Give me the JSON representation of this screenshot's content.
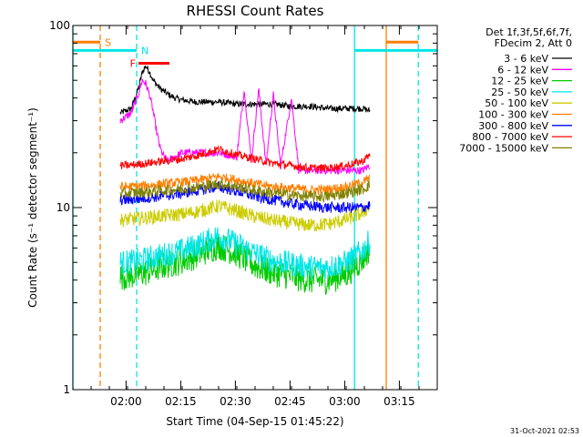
{
  "chart_data": {
    "type": "line",
    "title": "RHESSI Count Rates",
    "xlabel": "Start Time (04-Sep-15 01:45:22)",
    "ylabel": "Count Rate (s⁻¹ detector segment⁻¹)",
    "x_unit": "minutes after 01:45:22",
    "xlim": [
      0,
      100
    ],
    "ylim": [
      1,
      100
    ],
    "yscale": "log",
    "grid": false,
    "legend_placement": "right",
    "x_ticks": [
      {
        "label": "02:00",
        "x": 14.6
      },
      {
        "label": "02:15",
        "x": 29.6
      },
      {
        "label": "02:30",
        "x": 44.6
      },
      {
        "label": "02:45",
        "x": 59.6
      },
      {
        "label": "03:00",
        "x": 74.6
      },
      {
        "label": "03:15",
        "x": 89.6
      }
    ],
    "y_ticks": [
      {
        "label": "1",
        "y": 1
      },
      {
        "label": "10",
        "y": 10
      },
      {
        "label": "100",
        "y": 100
      }
    ],
    "legend_header": [
      "Det 1f,3f,5f,6f,7f,",
      "FDecim 2, Att 0"
    ],
    "series": [
      {
        "name": "3 - 6 keV",
        "color": "#000000",
        "x": [
          13,
          16,
          18,
          19,
          20,
          21,
          22,
          24,
          26,
          28,
          30,
          34,
          40,
          45,
          50,
          55,
          60,
          65,
          70,
          75,
          79.5,
          81.5
        ],
        "y": [
          33,
          35,
          45,
          55,
          60,
          56,
          50,
          45,
          42,
          40,
          39,
          38,
          38,
          37,
          37,
          37,
          36,
          36,
          35,
          35,
          35,
          34
        ]
      },
      {
        "name": "6 - 12 keV",
        "color": "#ff00ff",
        "x": [
          13,
          16,
          18,
          19,
          20,
          21,
          22,
          23,
          24,
          25,
          26,
          28,
          30,
          35,
          40,
          45,
          47,
          49,
          51,
          53,
          55,
          57,
          60,
          62,
          66,
          70,
          75,
          79.5,
          81.5
        ],
        "y": [
          30,
          33,
          42,
          50,
          48,
          42,
          34,
          26,
          21,
          19,
          18,
          19,
          20,
          20,
          20,
          19,
          45,
          18,
          45,
          17,
          42,
          17,
          40,
          16,
          16,
          16,
          16,
          16,
          17
        ]
      },
      {
        "name": "12 - 25 keV",
        "color": "#00cc00",
        "x": [
          13,
          15,
          20,
          25,
          30,
          35,
          40,
          45,
          50,
          55,
          60,
          65,
          70,
          75,
          79.5,
          81.5
        ],
        "y": [
          4.2,
          4.2,
          4.4,
          4.8,
          5.1,
          5.6,
          6.2,
          5.6,
          4.8,
          4.4,
          4.2,
          4.0,
          4.0,
          4.3,
          5.2,
          6.0
        ]
      },
      {
        "name": "25 - 50 keV",
        "color": "#00e5e5",
        "x": [
          13,
          15,
          20,
          25,
          30,
          35,
          40,
          45,
          50,
          55,
          60,
          65,
          70,
          75,
          79.5,
          81.5
        ],
        "y": [
          5.0,
          5.0,
          5.2,
          5.5,
          5.8,
          6.3,
          7.0,
          6.3,
          5.6,
          5.1,
          4.9,
          4.7,
          4.7,
          5.0,
          5.8,
          6.6
        ]
      },
      {
        "name": "50 - 100 keV",
        "color": "#cccc00",
        "x": [
          13,
          15,
          20,
          25,
          30,
          35,
          40,
          45,
          50,
          55,
          60,
          65,
          70,
          75,
          79.5,
          81.5
        ],
        "y": [
          8.5,
          8.6,
          8.8,
          9.0,
          9.2,
          9.6,
          10.2,
          9.6,
          8.9,
          8.5,
          8.2,
          8.0,
          8.1,
          8.6,
          9.3,
          10.2
        ]
      },
      {
        "name": "100 - 300 keV",
        "color": "#ff7f00",
        "x": [
          13,
          15,
          20,
          25,
          30,
          35,
          40,
          45,
          50,
          55,
          60,
          65,
          70,
          75,
          79.5,
          81.5
        ],
        "y": [
          13,
          13,
          13.2,
          13.5,
          13.8,
          14.2,
          14.8,
          14.2,
          13.5,
          13.0,
          12.8,
          12.5,
          12.6,
          13.0,
          13.8,
          14.5
        ]
      },
      {
        "name": "300 - 800 keV",
        "color": "#0000ff",
        "x": [
          13,
          15,
          20,
          25,
          30,
          35,
          40,
          45,
          50,
          55,
          60,
          65,
          70,
          75,
          79.5,
          81.5
        ],
        "y": [
          11,
          11,
          11.3,
          11.6,
          12.0,
          12.5,
          13.0,
          12.3,
          11.5,
          11.0,
          10.5,
          10.2,
          10.0,
          10.0,
          10.0,
          10.3
        ]
      },
      {
        "name": "800 - 7000 keV",
        "color": "#ff0000",
        "x": [
          13,
          15,
          20,
          25,
          30,
          35,
          40,
          45,
          50,
          55,
          60,
          65,
          70,
          75,
          79.5,
          81.5
        ],
        "y": [
          17,
          17,
          17.5,
          18,
          18.5,
          19.5,
          21,
          19.5,
          18.5,
          17.5,
          17,
          16.5,
          16.5,
          17,
          18,
          19.5
        ]
      },
      {
        "name": "7000 - 15000 keV",
        "color": "#808000",
        "x": [
          13,
          15,
          20,
          25,
          30,
          35,
          40,
          45,
          50,
          55,
          60,
          65,
          70,
          75,
          79.5,
          81.5
        ],
        "y": [
          12,
          12,
          12.2,
          12.4,
          12.7,
          13.0,
          13.5,
          13.0,
          12.4,
          12.0,
          11.7,
          11.5,
          11.5,
          12.0,
          12.6,
          13.3
        ]
      }
    ],
    "vertical_markers": [
      {
        "x": 0,
        "color": "#00e5e5",
        "style": "solid"
      },
      {
        "x": 7.5,
        "color": "#ff7f00",
        "style": "dashed"
      },
      {
        "x": 17.5,
        "color": "#00e5e5",
        "style": "dashed"
      },
      {
        "x": 77.3,
        "color": "#00e5e5",
        "style": "solid"
      },
      {
        "x": 86.0,
        "color": "#ff7f00",
        "style": "solid"
      },
      {
        "x": 94.8,
        "color": "#00e5e5",
        "style": "dashed"
      }
    ],
    "flag_bars": [
      {
        "label": "S",
        "color": "#ff7f00",
        "x_start": 0,
        "x_end": 7.5,
        "y": 81
      },
      {
        "label": "N",
        "color": "#00e5e5",
        "x_start": 0,
        "x_end": 17.5,
        "y": 73
      },
      {
        "label": "F",
        "color": "#ff0000",
        "x_start": 18.0,
        "x_end": 26.5,
        "y": 62
      },
      {
        "label": "",
        "color": "#ff7f00",
        "x_start": 86.0,
        "x_end": 94.8,
        "y": 81
      },
      {
        "label": "",
        "color": "#00e5e5",
        "x_start": 77.3,
        "x_end": 100,
        "y": 73
      }
    ],
    "footer_timestamp": "31-Oct-2021 02:53"
  }
}
